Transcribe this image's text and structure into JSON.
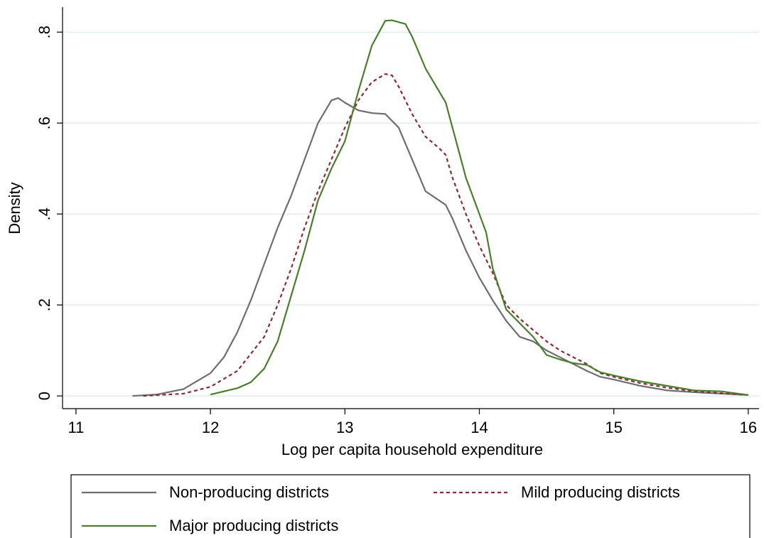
{
  "chart_data": {
    "type": "line",
    "xlabel": "Log per capita household expenditure",
    "ylabel": "Density",
    "xlim": [
      10.9,
      16.08
    ],
    "xticks": [
      11,
      12,
      13,
      14,
      15,
      16
    ],
    "ylim": [
      -0.028,
      0.855
    ],
    "yticks": [
      0,
      {
        "value": 0.2,
        "label": ".2"
      },
      {
        "value": 0.4,
        "label": ".4"
      },
      {
        "value": 0.6,
        "label": ".6"
      },
      {
        "value": 0.8,
        "label": ".8"
      }
    ],
    "grid": true,
    "legend": "bottom",
    "series": [
      {
        "name": "Non-producing districts",
        "color": "#6e6e6e",
        "dash": false,
        "x": [
          11.42,
          11.6,
          11.8,
          12.0,
          12.1,
          12.2,
          12.3,
          12.4,
          12.5,
          12.6,
          12.7,
          12.8,
          12.9,
          12.95,
          13.0,
          13.1,
          13.2,
          13.3,
          13.4,
          13.5,
          13.6,
          13.7,
          13.75,
          13.8,
          13.9,
          14.0,
          14.1,
          14.2,
          14.3,
          14.4,
          14.5,
          14.6,
          14.7,
          14.8,
          14.9,
          15.0,
          15.2,
          15.4,
          15.6,
          15.8,
          16.0
        ],
        "values": [
          0,
          0.003,
          0.015,
          0.05,
          0.085,
          0.14,
          0.21,
          0.29,
          0.37,
          0.44,
          0.52,
          0.6,
          0.65,
          0.655,
          0.645,
          0.628,
          0.622,
          0.62,
          0.59,
          0.52,
          0.45,
          0.43,
          0.42,
          0.39,
          0.32,
          0.26,
          0.21,
          0.165,
          0.13,
          0.12,
          0.1,
          0.085,
          0.07,
          0.055,
          0.042,
          0.036,
          0.022,
          0.012,
          0.008,
          0.005,
          0.002
        ]
      },
      {
        "name": "Mild producing districts",
        "color": "#8b2b35",
        "dash": true,
        "x": [
          11.5,
          11.8,
          12.0,
          12.2,
          12.4,
          12.5,
          12.6,
          12.7,
          12.8,
          12.9,
          13.0,
          13.1,
          13.2,
          13.3,
          13.35,
          13.4,
          13.5,
          13.6,
          13.7,
          13.75,
          13.8,
          13.9,
          14.0,
          14.1,
          14.2,
          14.3,
          14.4,
          14.5,
          14.6,
          14.7,
          14.8,
          14.9,
          15.0,
          15.2,
          15.4,
          15.6,
          15.8,
          16.0
        ],
        "values": [
          0,
          0.005,
          0.02,
          0.055,
          0.13,
          0.2,
          0.28,
          0.37,
          0.45,
          0.52,
          0.59,
          0.65,
          0.69,
          0.708,
          0.705,
          0.68,
          0.62,
          0.57,
          0.545,
          0.53,
          0.48,
          0.4,
          0.33,
          0.27,
          0.2,
          0.17,
          0.145,
          0.12,
          0.1,
          0.085,
          0.07,
          0.05,
          0.042,
          0.028,
          0.018,
          0.01,
          0.006,
          0.002
        ]
      },
      {
        "name": "Major producing districts",
        "color": "#4a7d2c",
        "dash": false,
        "x": [
          12.0,
          12.1,
          12.2,
          12.3,
          12.4,
          12.5,
          12.6,
          12.7,
          12.8,
          12.9,
          13.0,
          13.1,
          13.2,
          13.3,
          13.35,
          13.45,
          13.5,
          13.6,
          13.7,
          13.75,
          13.8,
          13.9,
          14.0,
          14.05,
          14.1,
          14.2,
          14.3,
          14.4,
          14.5,
          14.6,
          14.7,
          14.8,
          14.9,
          15.0,
          15.2,
          15.4,
          15.6,
          15.8,
          16.0
        ],
        "values": [
          0.003,
          0.01,
          0.017,
          0.03,
          0.06,
          0.12,
          0.22,
          0.32,
          0.43,
          0.5,
          0.56,
          0.67,
          0.77,
          0.825,
          0.826,
          0.818,
          0.79,
          0.72,
          0.67,
          0.645,
          0.59,
          0.48,
          0.4,
          0.36,
          0.28,
          0.19,
          0.16,
          0.13,
          0.09,
          0.08,
          0.072,
          0.068,
          0.052,
          0.045,
          0.032,
          0.022,
          0.012,
          0.01,
          0.002
        ]
      }
    ]
  }
}
